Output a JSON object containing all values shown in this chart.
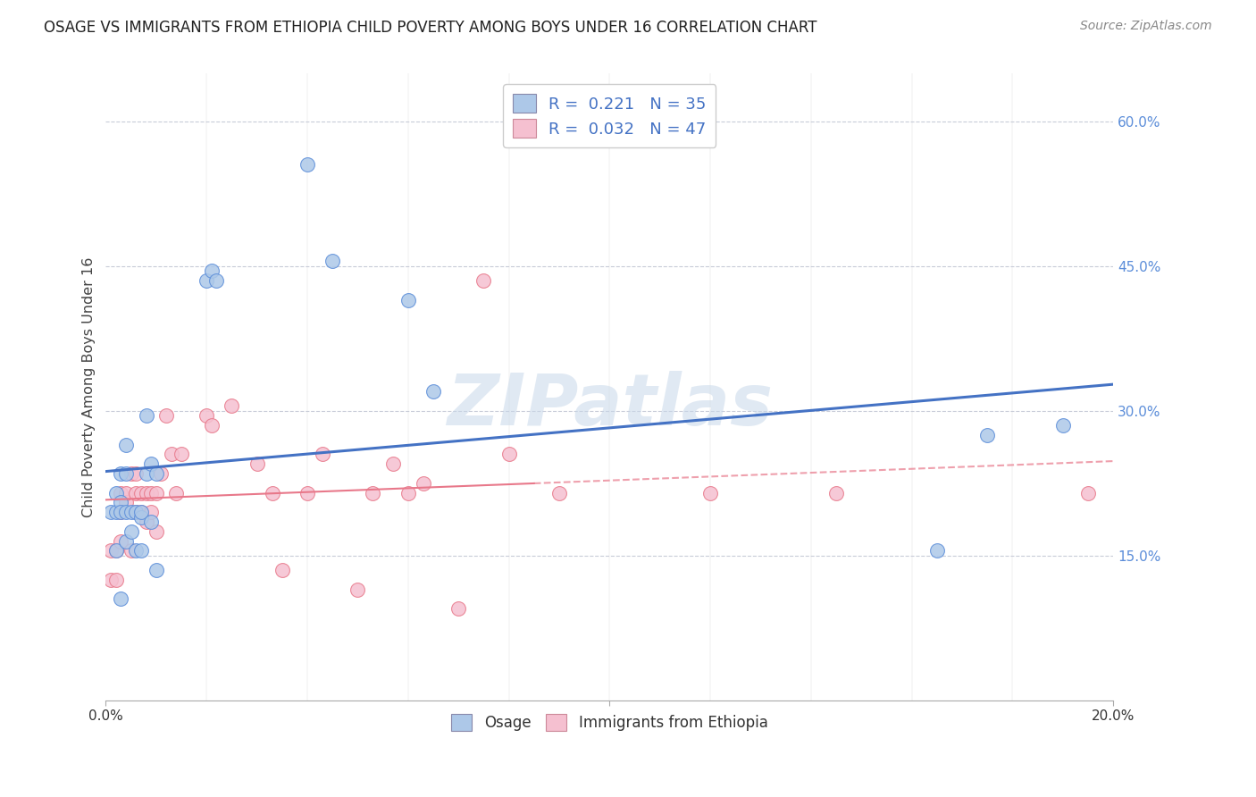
{
  "title": "OSAGE VS IMMIGRANTS FROM ETHIOPIA CHILD POVERTY AMONG BOYS UNDER 16 CORRELATION CHART",
  "source": "Source: ZipAtlas.com",
  "ylabel_label": "Child Poverty Among Boys Under 16",
  "xlim": [
    0.0,
    0.2
  ],
  "ylim": [
    0.0,
    0.65
  ],
  "right_ytick_labels": [
    "60.0%",
    "45.0%",
    "30.0%",
    "15.0%"
  ],
  "right_yticks": [
    0.6,
    0.45,
    0.3,
    0.15
  ],
  "osage_R": "0.221",
  "osage_N": "35",
  "ethiopia_R": "0.032",
  "ethiopia_N": "47",
  "osage_color": "#adc8e8",
  "osage_edge_color": "#5b8dd9",
  "ethiopia_color": "#f5c0d0",
  "ethiopia_edge_color": "#e8788a",
  "osage_line_color": "#4472c4",
  "ethiopia_line_color": "#e8788a",
  "background_color": "#ffffff",
  "grid_color": "#c8ccd8",
  "watermark": "ZIPatlas",
  "legend_fontsize": 13,
  "title_fontsize": 12,
  "osage_x": [
    0.001,
    0.002,
    0.002,
    0.002,
    0.003,
    0.003,
    0.003,
    0.003,
    0.004,
    0.004,
    0.004,
    0.004,
    0.005,
    0.005,
    0.006,
    0.006,
    0.007,
    0.007,
    0.007,
    0.008,
    0.008,
    0.009,
    0.009,
    0.01,
    0.01,
    0.02,
    0.021,
    0.022,
    0.04,
    0.045,
    0.06,
    0.065,
    0.165,
    0.175,
    0.19
  ],
  "osage_y": [
    0.195,
    0.215,
    0.155,
    0.195,
    0.205,
    0.235,
    0.195,
    0.105,
    0.265,
    0.235,
    0.195,
    0.165,
    0.175,
    0.195,
    0.195,
    0.155,
    0.19,
    0.155,
    0.195,
    0.295,
    0.235,
    0.185,
    0.245,
    0.235,
    0.135,
    0.435,
    0.445,
    0.435,
    0.555,
    0.455,
    0.415,
    0.32,
    0.155,
    0.275,
    0.285
  ],
  "ethiopia_x": [
    0.001,
    0.001,
    0.002,
    0.002,
    0.003,
    0.003,
    0.003,
    0.004,
    0.004,
    0.005,
    0.005,
    0.006,
    0.006,
    0.006,
    0.007,
    0.007,
    0.008,
    0.008,
    0.009,
    0.009,
    0.01,
    0.01,
    0.011,
    0.012,
    0.013,
    0.014,
    0.015,
    0.02,
    0.021,
    0.025,
    0.03,
    0.033,
    0.035,
    0.04,
    0.043,
    0.05,
    0.053,
    0.057,
    0.06,
    0.063,
    0.07,
    0.075,
    0.08,
    0.09,
    0.12,
    0.145,
    0.195
  ],
  "ethiopia_y": [
    0.155,
    0.125,
    0.155,
    0.125,
    0.165,
    0.195,
    0.215,
    0.205,
    0.215,
    0.235,
    0.155,
    0.215,
    0.235,
    0.195,
    0.215,
    0.195,
    0.185,
    0.215,
    0.195,
    0.215,
    0.215,
    0.175,
    0.235,
    0.295,
    0.255,
    0.215,
    0.255,
    0.295,
    0.285,
    0.305,
    0.245,
    0.215,
    0.135,
    0.215,
    0.255,
    0.115,
    0.215,
    0.245,
    0.215,
    0.225,
    0.095,
    0.435,
    0.255,
    0.215,
    0.215,
    0.215,
    0.215
  ]
}
